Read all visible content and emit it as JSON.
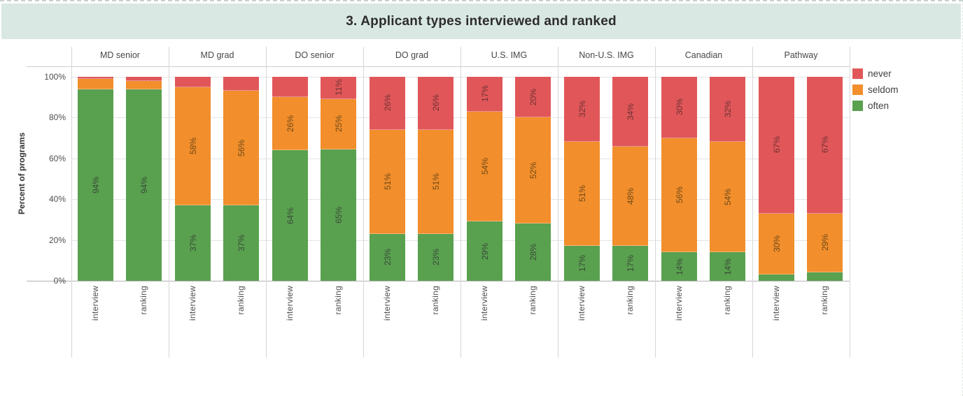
{
  "title": "3. Applicant types interviewed and ranked",
  "chart_data": {
    "type": "bar",
    "stacked": true,
    "orientation": "vertical",
    "title": "3. Applicant types interviewed and ranked",
    "ylabel": "Percent of programs",
    "ylim": [
      0,
      100
    ],
    "grid": "horizontal",
    "yticks": [
      {
        "label": "0%",
        "value": 0
      },
      {
        "label": "20%",
        "value": 20
      },
      {
        "label": "40%",
        "value": 40
      },
      {
        "label": "60%",
        "value": 60
      },
      {
        "label": "80%",
        "value": 80
      },
      {
        "label": "100%",
        "value": 100
      }
    ],
    "legend": {
      "position": "top-right",
      "items": [
        {
          "key": "never",
          "label": "never",
          "color": "#e15759"
        },
        {
          "key": "seldom",
          "label": "seldom",
          "color": "#f28e2b"
        },
        {
          "key": "often",
          "label": "often",
          "color": "#59a14f"
        }
      ]
    },
    "label_colors": {
      "never": "#6e3032",
      "seldom": "#6e4a1a",
      "often": "#3a4a38"
    },
    "bar_axis_labels": [
      "interview",
      "ranking"
    ],
    "groups": [
      {
        "category": "MD senior",
        "bars": [
          {
            "x": "interview",
            "values": {
              "often": 94,
              "seldom": 5,
              "never": 1
            },
            "labels": {
              "often": "94%",
              "seldom": "",
              "never": ""
            }
          },
          {
            "x": "ranking",
            "values": {
              "often": 94,
              "seldom": 4,
              "never": 2
            },
            "labels": {
              "often": "94%",
              "seldom": "",
              "never": ""
            }
          }
        ]
      },
      {
        "category": "MD grad",
        "bars": [
          {
            "x": "interview",
            "values": {
              "often": 37,
              "seldom": 58,
              "never": 5
            },
            "labels": {
              "often": "37%",
              "seldom": "58%",
              "never": ""
            }
          },
          {
            "x": "ranking",
            "values": {
              "often": 37,
              "seldom": 56,
              "never": 7
            },
            "labels": {
              "often": "37%",
              "seldom": "56%",
              "never": ""
            }
          }
        ]
      },
      {
        "category": "DO senior",
        "bars": [
          {
            "x": "interview",
            "values": {
              "often": 64,
              "seldom": 26,
              "never": 10
            },
            "labels": {
              "often": "64%",
              "seldom": "26%",
              "never": ""
            }
          },
          {
            "x": "ranking",
            "values": {
              "often": 65,
              "seldom": 25,
              "never": 11
            },
            "labels": {
              "often": "65%",
              "seldom": "25%",
              "never": "11%"
            }
          }
        ]
      },
      {
        "category": "DO grad",
        "bars": [
          {
            "x": "interview",
            "values": {
              "often": 23,
              "seldom": 51,
              "never": 26
            },
            "labels": {
              "often": "23%",
              "seldom": "51%",
              "never": "26%"
            }
          },
          {
            "x": "ranking",
            "values": {
              "often": 23,
              "seldom": 51,
              "never": 26
            },
            "labels": {
              "often": "23%",
              "seldom": "51%",
              "never": "26%"
            }
          }
        ]
      },
      {
        "category": "U.S. IMG",
        "bars": [
          {
            "x": "interview",
            "values": {
              "often": 29,
              "seldom": 54,
              "never": 17
            },
            "labels": {
              "often": "29%",
              "seldom": "54%",
              "never": "17%"
            }
          },
          {
            "x": "ranking",
            "values": {
              "often": 28,
              "seldom": 52,
              "never": 20
            },
            "labels": {
              "often": "28%",
              "seldom": "52%",
              "never": "20%"
            }
          }
        ]
      },
      {
        "category": "Non-U.S. IMG",
        "bars": [
          {
            "x": "interview",
            "values": {
              "often": 17,
              "seldom": 51,
              "never": 32
            },
            "labels": {
              "often": "17%",
              "seldom": "51%",
              "never": "32%"
            }
          },
          {
            "x": "ranking",
            "values": {
              "often": 17,
              "seldom": 48,
              "never": 34
            },
            "labels": {
              "often": "17%",
              "seldom": "48%",
              "never": "34%"
            }
          }
        ]
      },
      {
        "category": "Canadian",
        "bars": [
          {
            "x": "interview",
            "values": {
              "often": 14,
              "seldom": 56,
              "never": 30
            },
            "labels": {
              "often": "14%",
              "seldom": "56%",
              "never": "30%"
            }
          },
          {
            "x": "ranking",
            "values": {
              "often": 14,
              "seldom": 54,
              "never": 32
            },
            "labels": {
              "often": "14%",
              "seldom": "54%",
              "never": "32%"
            }
          }
        ]
      },
      {
        "category": "Pathway",
        "bars": [
          {
            "x": "interview",
            "values": {
              "often": 3,
              "seldom": 30,
              "never": 67
            },
            "labels": {
              "often": "",
              "seldom": "30%",
              "never": "67%"
            }
          },
          {
            "x": "ranking",
            "values": {
              "often": 4,
              "seldom": 29,
              "never": 67
            },
            "labels": {
              "often": "",
              "seldom": "29%",
              "never": "67%"
            }
          }
        ]
      }
    ]
  }
}
